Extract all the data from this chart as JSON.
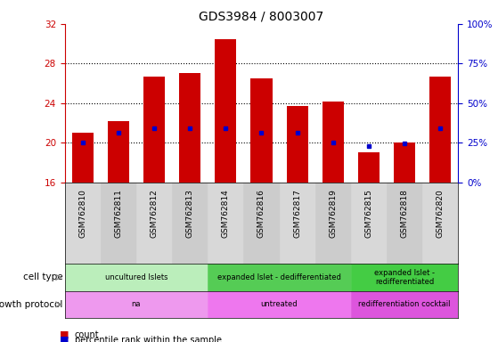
{
  "title": "GDS3984 / 8003007",
  "samples": [
    "GSM762810",
    "GSM762811",
    "GSM762812",
    "GSM762813",
    "GSM762814",
    "GSM762816",
    "GSM762817",
    "GSM762819",
    "GSM762815",
    "GSM762818",
    "GSM762820"
  ],
  "count_values": [
    21.0,
    22.2,
    26.7,
    27.0,
    30.5,
    26.5,
    23.7,
    24.2,
    19.0,
    20.0,
    26.7
  ],
  "count_base": 16,
  "percentile_values": [
    20.0,
    21.0,
    21.5,
    21.5,
    21.5,
    21.0,
    21.0,
    20.0,
    19.7,
    19.9,
    21.5
  ],
  "ylim": [
    16,
    32
  ],
  "yticks": [
    16,
    20,
    24,
    28,
    32
  ],
  "right_yticks": [
    0,
    25,
    50,
    75,
    100
  ],
  "right_ytick_labels": [
    "0%",
    "25%",
    "50%",
    "75%",
    "100%"
  ],
  "bar_color": "#cc0000",
  "percentile_color": "#0000cc",
  "cell_type_groups": [
    {
      "label": "uncultured Islets",
      "start": 0,
      "end": 4,
      "color": "#bbeebb"
    },
    {
      "label": "expanded Islet - dedifferentiated",
      "start": 4,
      "end": 8,
      "color": "#55cc55"
    },
    {
      "label": "expanded Islet -\nredifferentiated",
      "start": 8,
      "end": 11,
      "color": "#44cc44"
    }
  ],
  "growth_protocol_groups": [
    {
      "label": "na",
      "start": 0,
      "end": 4,
      "color": "#ee99ee"
    },
    {
      "label": "untreated",
      "start": 4,
      "end": 8,
      "color": "#ee77ee"
    },
    {
      "label": "redifferentiation cocktail",
      "start": 8,
      "end": 11,
      "color": "#dd55dd"
    }
  ],
  "cell_type_label": "cell type",
  "growth_protocol_label": "growth protocol",
  "legend_count_label": "count",
  "legend_pct_label": "percentile rank within the sample",
  "bar_width": 0.6,
  "title_fontsize": 10,
  "tick_fontsize": 7.5,
  "annot_fontsize": 7.5,
  "label_fontsize": 8
}
